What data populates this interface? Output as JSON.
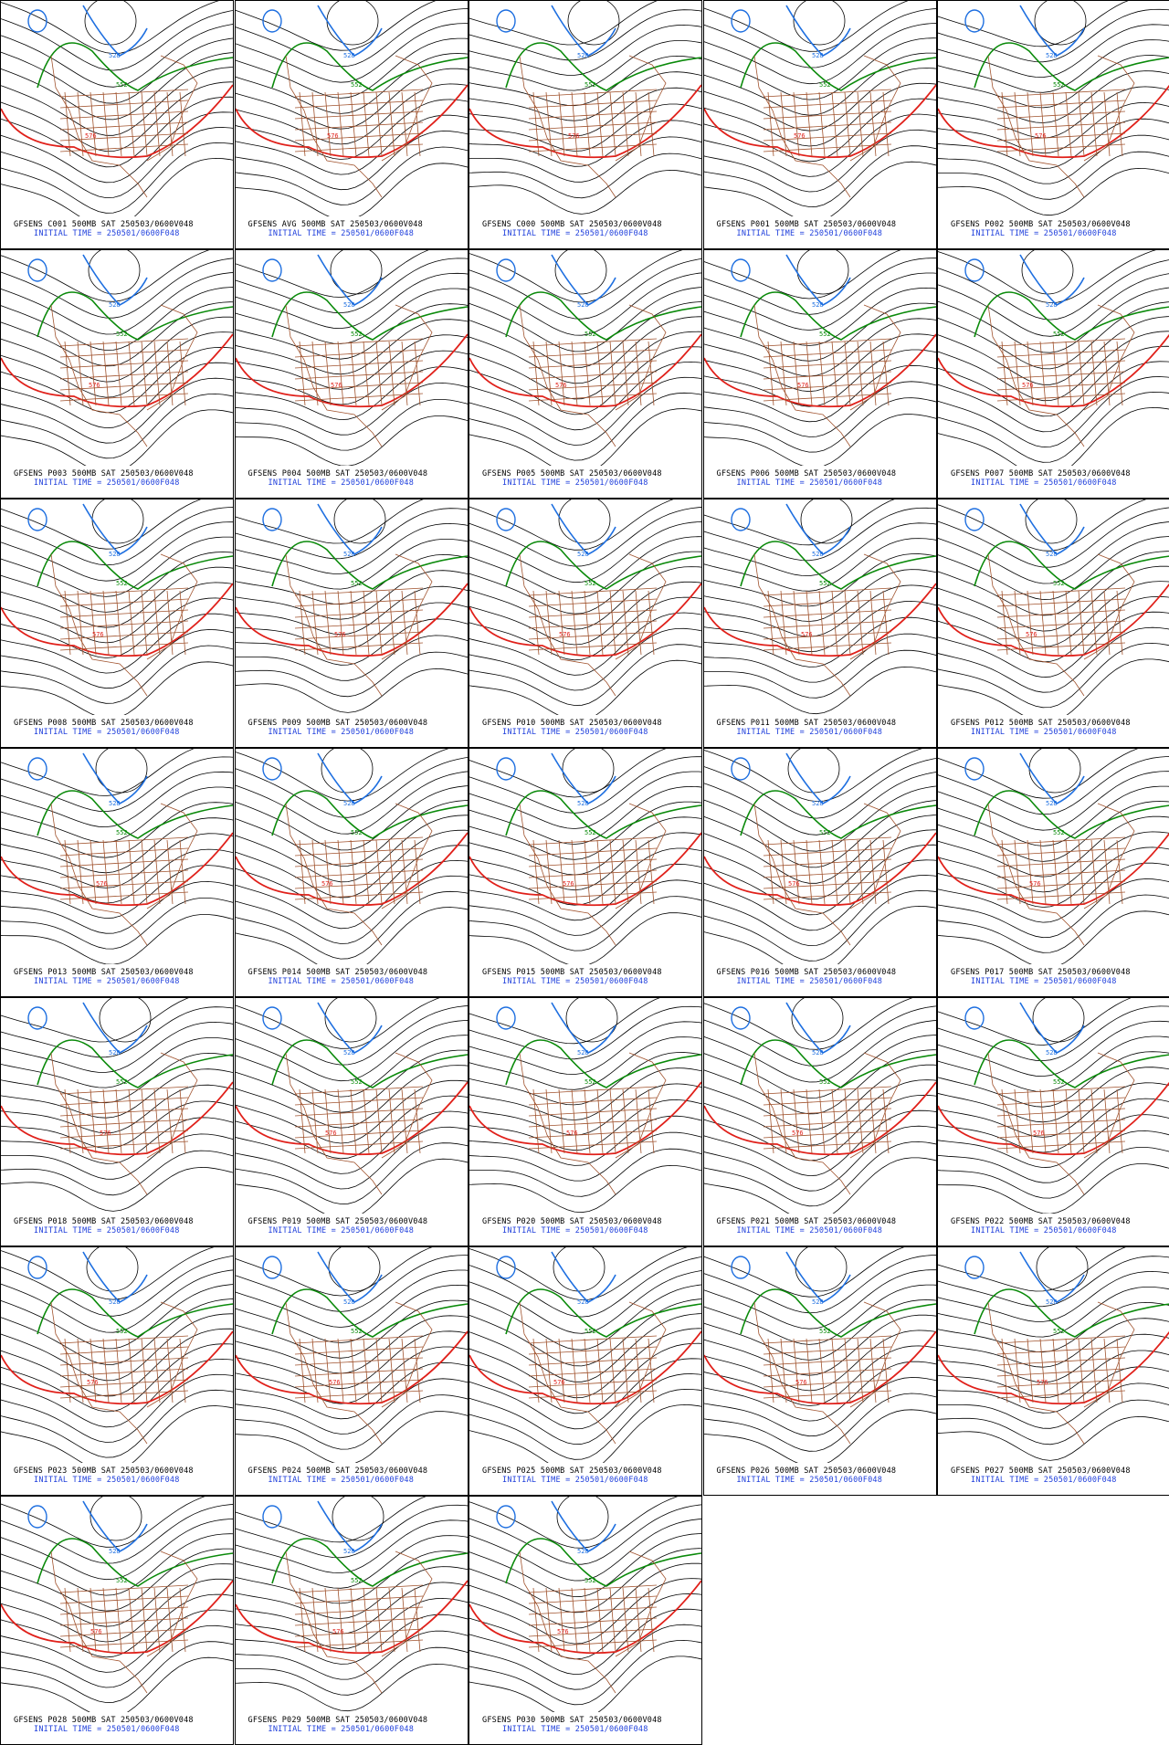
{
  "colors": {
    "black_contour": "#000000",
    "blue_contour": "#1e6fe0",
    "green_contour": "#0a8a0a",
    "red_contour": "#e0201a",
    "map_lines": "#a0522d",
    "caption_black": "#000000",
    "caption_blue": "#1f3fdc"
  },
  "contour_labels": {
    "blue": "528",
    "green": "552",
    "red": "576"
  },
  "initial_time": "INITIAL TIME = 250501/0600F048",
  "panels": [
    {
      "title": "GFSENS C001 500MB SAT 250503/0600V048"
    },
    {
      "title": "GFSENS AVG 500MB SAT 250503/0600V048"
    },
    {
      "title": "GFSENS C000 500MB SAT 250503/0600V048"
    },
    {
      "title": "GFSENS P001 500MB SAT 250503/0600V048"
    },
    {
      "title": "GFSENS P002 500MB SAT 250503/0600V048"
    },
    {
      "title": "GFSENS P003 500MB SAT 250503/0600V048"
    },
    {
      "title": "GFSENS P004 500MB SAT 250503/0600V048"
    },
    {
      "title": "GFSENS P005 500MB SAT 250503/0600V048"
    },
    {
      "title": "GFSENS P006 500MB SAT 250503/0600V048"
    },
    {
      "title": "GFSENS P007 500MB SAT 250503/0600V048"
    },
    {
      "title": "GFSENS P008 500MB SAT 250503/0600V048"
    },
    {
      "title": "GFSENS P009 500MB SAT 250503/0600V048"
    },
    {
      "title": "GFSENS P010 500MB SAT 250503/0600V048"
    },
    {
      "title": "GFSENS P011 500MB SAT 250503/0600V048"
    },
    {
      "title": "GFSENS P012 500MB SAT 250503/0600V048"
    },
    {
      "title": "GFSENS P013 500MB SAT 250503/0600V048"
    },
    {
      "title": "GFSENS P014 500MB SAT 250503/0600V048"
    },
    {
      "title": "GFSENS P015 500MB SAT 250503/0600V048"
    },
    {
      "title": "GFSENS P016 500MB SAT 250503/0600V048"
    },
    {
      "title": "GFSENS P017 500MB SAT 250503/0600V048"
    },
    {
      "title": "GFSENS P018 500MB SAT 250503/0600V048"
    },
    {
      "title": "GFSENS P019 500MB SAT 250503/0600V048"
    },
    {
      "title": "GFSENS P020 500MB SAT 250503/0600V048"
    },
    {
      "title": "GFSENS P021 500MB SAT 250503/0600V048"
    },
    {
      "title": "GFSENS P022 500MB SAT 250503/0600V048"
    },
    {
      "title": "GFSENS P023 500MB SAT 250503/0600V048"
    },
    {
      "title": "GFSENS P024 500MB SAT 250503/0600V048"
    },
    {
      "title": "GFSENS P025 500MB SAT 250503/0600V048"
    },
    {
      "title": "GFSENS P026 500MB SAT 250503/0600V048"
    },
    {
      "title": "GFSENS P027 500MB SAT 250503/0600V048"
    },
    {
      "title": "GFSENS P028 500MB SAT 250503/0600V048"
    },
    {
      "title": "GFSENS P029 500MB SAT 250503/0600V048"
    },
    {
      "title": "GFSENS P030 500MB SAT 250503/0600V048"
    }
  ]
}
